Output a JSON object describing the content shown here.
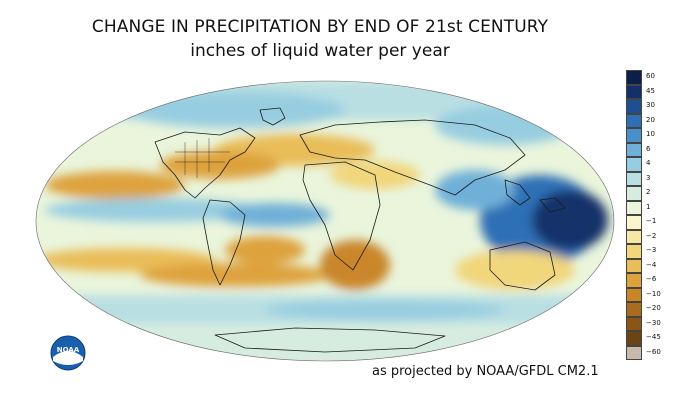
{
  "title": "CHANGE IN PRECIPITATION BY END OF 21st CENTURY",
  "subtitle": "inches of liquid water per year",
  "credit": "as projected by NOAA/GFDL CM2.1",
  "logo_text": "NOAA",
  "legend": {
    "entries": [
      {
        "label": "60",
        "color": "#0b1f4b"
      },
      {
        "label": "45",
        "color": "#13306b"
      },
      {
        "label": "30",
        "color": "#1f4f92"
      },
      {
        "label": "20",
        "color": "#2f6fb5"
      },
      {
        "label": "10",
        "color": "#4a8fca"
      },
      {
        "label": "6",
        "color": "#6fb0d8"
      },
      {
        "label": "4",
        "color": "#97cde0"
      },
      {
        "label": "3",
        "color": "#b9dfe3"
      },
      {
        "label": "2",
        "color": "#d5ecdf"
      },
      {
        "label": "1",
        "color": "#eaf5dc"
      },
      {
        "label": "−1",
        "color": "#fbf6cc"
      },
      {
        "label": "−2",
        "color": "#f7e9a4"
      },
      {
        "label": "−3",
        "color": "#f1d67c"
      },
      {
        "label": "−4",
        "color": "#e9bd59"
      },
      {
        "label": "−6",
        "color": "#dea23c"
      },
      {
        "label": "−10",
        "color": "#c98629"
      },
      {
        "label": "−20",
        "color": "#aa6b1e"
      },
      {
        "label": "−30",
        "color": "#8a5517"
      },
      {
        "label": "−45",
        "color": "#6c4413"
      },
      {
        "label": "−60",
        "color": "#c9b9ad"
      }
    ]
  }
}
